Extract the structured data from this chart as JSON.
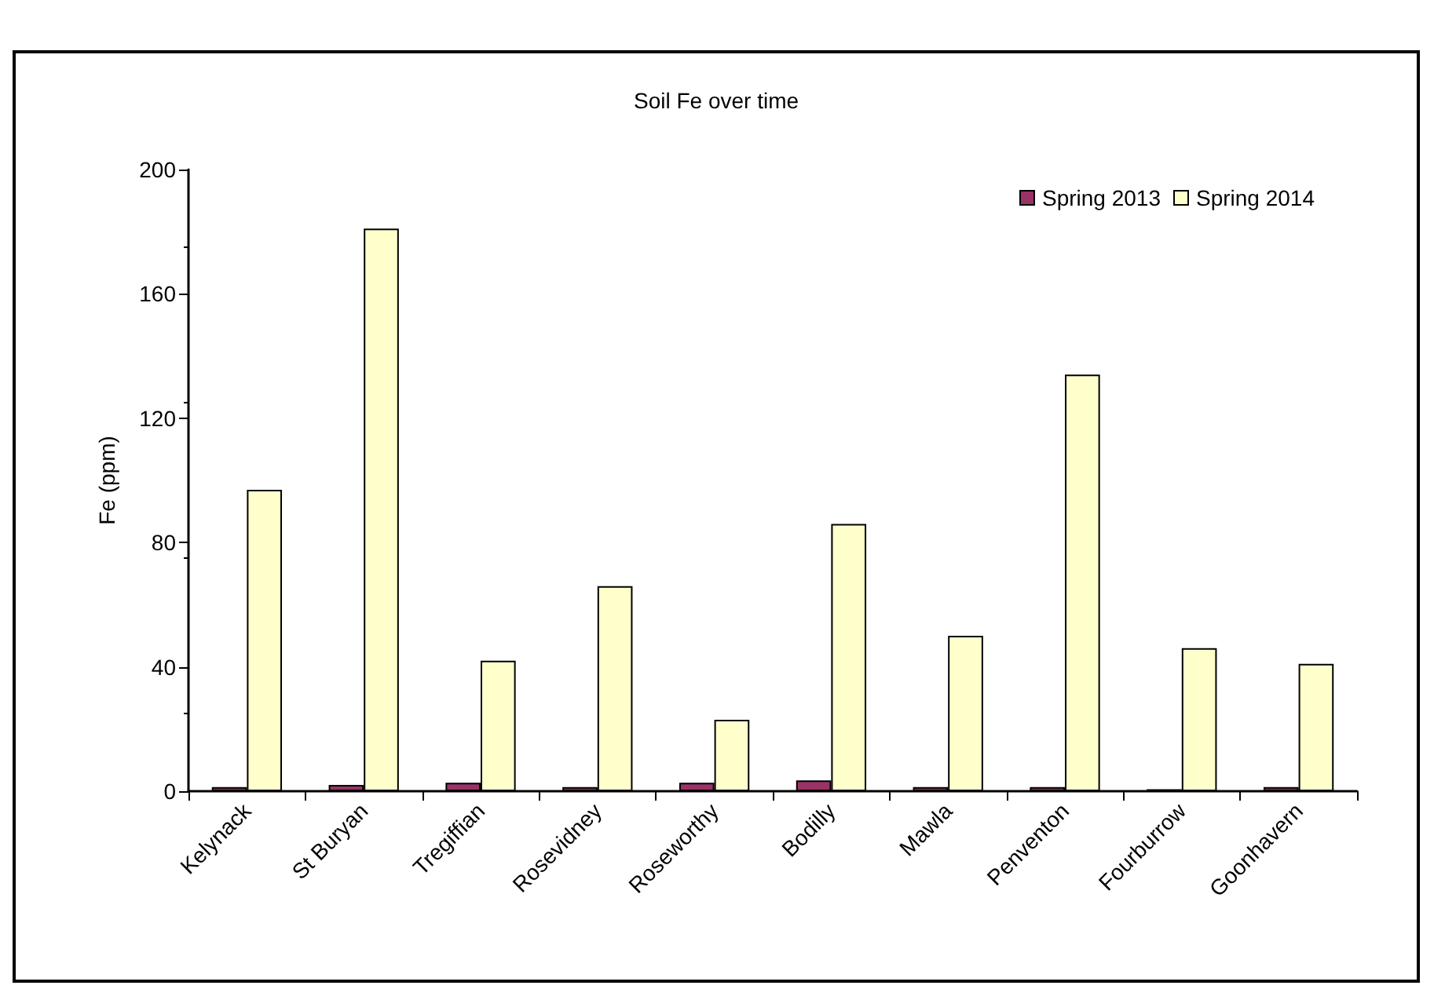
{
  "chart_data": {
    "type": "bar",
    "title": "Soil Fe over time",
    "ylabel": "Fe (ppm)",
    "categories": [
      "Kelynack",
      "St Buryan",
      "Tregiffian",
      "Rosevidney",
      "Roseworthy",
      "Bodilly",
      "Mawla",
      "Penventon",
      "Fourburrow",
      "Goonhavern"
    ],
    "series": [
      {
        "name": "Spring 2013",
        "color": "#993366",
        "values": [
          1.3,
          2,
          2.7,
          1.3,
          2.7,
          3.5,
          1.3,
          1.3,
          0.6,
          1.3
        ]
      },
      {
        "name": "Spring 2014",
        "color": "#ffffcc",
        "values": [
          97,
          181,
          42,
          66,
          23,
          86,
          50,
          134,
          46,
          41
        ]
      }
    ],
    "ylim": [
      0,
      200
    ],
    "yticks": [
      0,
      40,
      80,
      120,
      160,
      200
    ],
    "grid": false,
    "legend": "top right"
  }
}
